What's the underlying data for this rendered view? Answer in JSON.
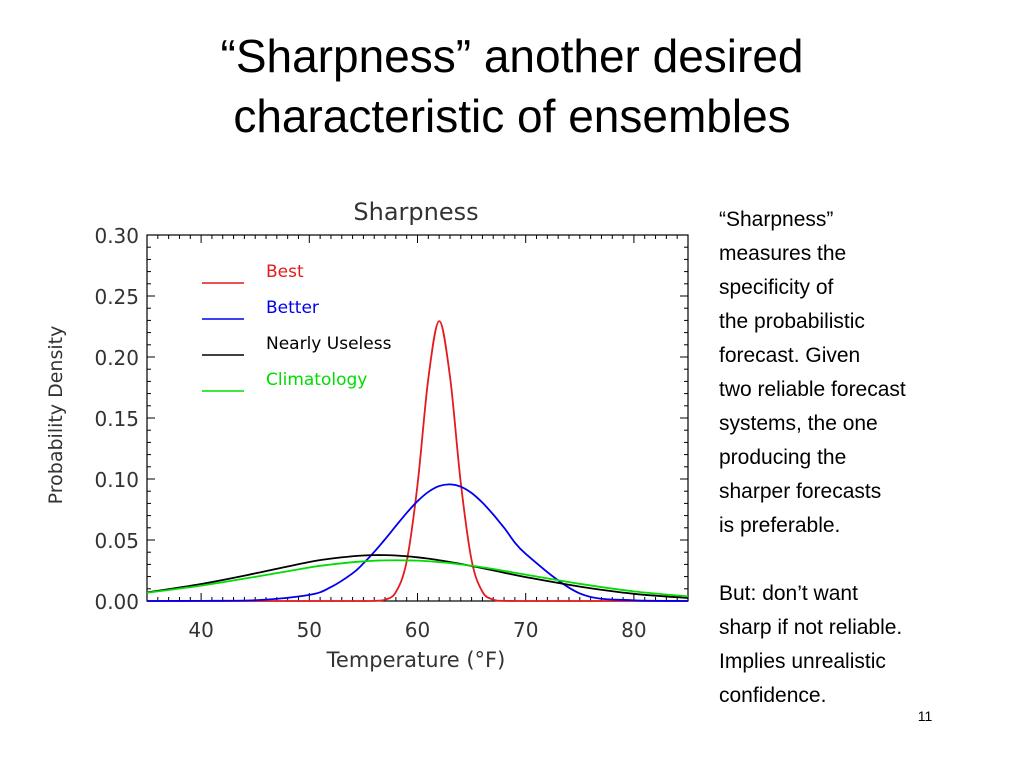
{
  "slide": {
    "title_lines": [
      "“Sharpness” another desired",
      "characteristic of ensembles"
    ],
    "side_paragraph_1": [
      "“Sharpness”",
      "measures the",
      "specificity of",
      "the probabilistic",
      "forecast.  Given",
      "two reliable forecast",
      "systems, the one",
      "producing the",
      "sharper forecasts",
      "is preferable."
    ],
    "side_paragraph_2": [
      "But: don’t want",
      "sharp if not reliable.",
      "Implies unrealistic",
      "confidence."
    ],
    "page_number": "11"
  },
  "chart_data": {
    "type": "line",
    "title": "Sharpness",
    "xlabel": "Temperature (°F)",
    "ylabel": "Probability Density",
    "xlim": [
      35,
      85
    ],
    "ylim": [
      0,
      0.3
    ],
    "xticks": [
      40,
      50,
      60,
      70,
      80
    ],
    "yticks": [
      0.0,
      0.05,
      0.1,
      0.15,
      0.2,
      0.25,
      0.3
    ],
    "ytick_labels": [
      "0.00",
      "0.05",
      "0.10",
      "0.15",
      "0.20",
      "0.25",
      "0.30"
    ],
    "grid": false,
    "legend_position": "top-left",
    "x": [
      35,
      40,
      45,
      50,
      52,
      54,
      55,
      56,
      57,
      58,
      59,
      60,
      61,
      62,
      63,
      64,
      65,
      66,
      67,
      68,
      70,
      75,
      80,
      85
    ],
    "series": [
      {
        "name": "Best",
        "color": "#e41a1c",
        "values": [
          0,
          0,
          0,
          0,
          0,
          0,
          0,
          0.0001,
          0.0011,
          0.0073,
          0.0325,
          0.0952,
          0.1823,
          0.2294,
          0.1841,
          0.0969,
          0.0334,
          0.0076,
          0.0011,
          0.0001,
          0,
          0,
          0,
          0
        ]
      },
      {
        "name": "Better",
        "color": "#0000ee",
        "values": [
          0,
          0.0001,
          0.0006,
          0.005,
          0.0114,
          0.0227,
          0.0308,
          0.0402,
          0.0506,
          0.0615,
          0.0722,
          0.0818,
          0.0894,
          0.0942,
          0.0956,
          0.0937,
          0.0885,
          0.0806,
          0.0709,
          0.0601,
          0.0387,
          0.0062,
          0.0005,
          0
        ]
      },
      {
        "name": "Nearly Useless",
        "color": "#000000",
        "values": [
          0.007,
          0.0139,
          0.0226,
          0.032,
          0.0347,
          0.0367,
          0.0373,
          0.0376,
          0.0376,
          0.0373,
          0.0367,
          0.0358,
          0.0347,
          0.0334,
          0.032,
          0.0304,
          0.0287,
          0.0269,
          0.0251,
          0.0232,
          0.0196,
          0.0118,
          0.0059,
          0.0025
        ]
      },
      {
        "name": "Climatology",
        "color": "#00dd00",
        "values": [
          0.0068,
          0.0126,
          0.0198,
          0.0275,
          0.0299,
          0.0318,
          0.0325,
          0.033,
          0.0333,
          0.0334,
          0.0333,
          0.0331,
          0.0326,
          0.0319,
          0.0311,
          0.03,
          0.0289,
          0.0276,
          0.0262,
          0.0247,
          0.0216,
          0.0141,
          0.0079,
          0.0038
        ]
      }
    ]
  }
}
